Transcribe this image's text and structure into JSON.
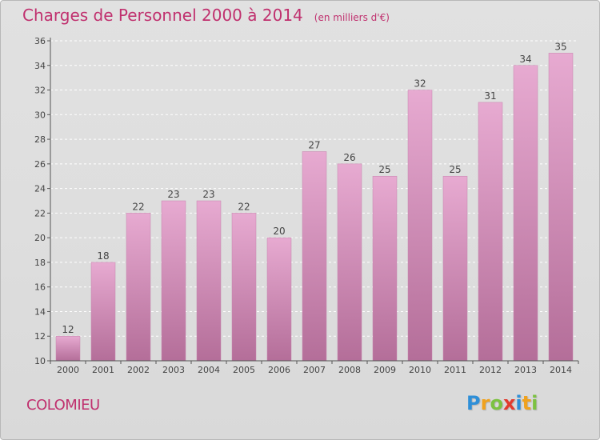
{
  "title": "Charges de Personnel 2000 à 2014",
  "subtitle": "(en milliers d'€)",
  "location": "COLOMIEU",
  "brand": {
    "letters": [
      "P",
      "r",
      "o",
      "x",
      "i",
      "t",
      "i"
    ],
    "colors": [
      "#2e8fd8",
      "#f0a21e",
      "#7cc241",
      "#e23b2e",
      "#2e8fd8",
      "#f0a21e",
      "#7cc241"
    ]
  },
  "colors": {
    "title": "#c0306e",
    "bar_top": "#e7aad1",
    "bar_bottom": "#b46e99",
    "background": "#dedede"
  },
  "chart_data": {
    "type": "bar",
    "categories": [
      "2000",
      "2001",
      "2002",
      "2003",
      "2004",
      "2005",
      "2006",
      "2007",
      "2008",
      "2009",
      "2010",
      "2011",
      "2012",
      "2013",
      "2014"
    ],
    "values": [
      12,
      18,
      22,
      23,
      23,
      22,
      20,
      27,
      26,
      25,
      32,
      25,
      31,
      34,
      35
    ],
    "ylim": [
      10,
      36
    ],
    "yticks": [
      10,
      12,
      14,
      16,
      18,
      20,
      22,
      24,
      26,
      28,
      30,
      32,
      34,
      36
    ],
    "grid": true,
    "data_labels": true
  }
}
